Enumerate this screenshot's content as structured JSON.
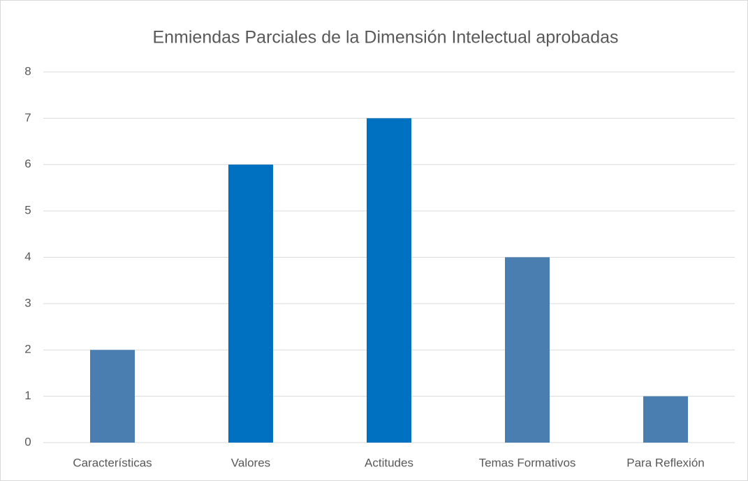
{
  "chart_data": {
    "type": "bar",
    "title": "Enmiendas Parciales de la Dimensión Intelectual aprobadas",
    "categories": [
      "Características",
      "Valores",
      "Actitudes",
      "Temas Formativos",
      "Para Reflexión"
    ],
    "values": [
      2,
      6,
      7,
      4,
      1
    ],
    "colors": [
      "#4a7eb0",
      "#0070c0",
      "#0070c0",
      "#4a7eb0",
      "#4a7eb0"
    ],
    "ylim": [
      0,
      8
    ],
    "yticks": [
      0,
      1,
      2,
      3,
      4,
      5,
      6,
      7,
      8
    ],
    "grid": true
  }
}
